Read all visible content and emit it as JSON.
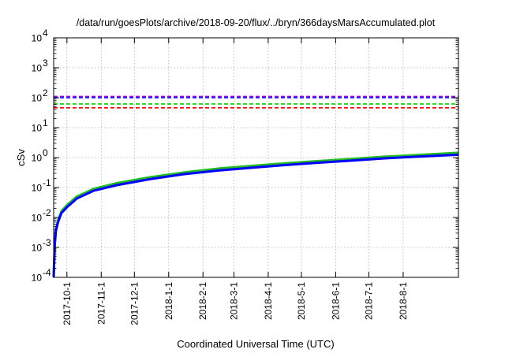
{
  "chart_data": {
    "type": "line",
    "title": "/data/run/goesPlots/archive/2018-09-20/flux/../bryn/366daysMarsAccumulated.plot",
    "xlabel": "Coordinated Universal Time (UTC)",
    "ylabel": "cSv",
    "xlim": [
      "2017-09-19",
      "2018-09-20"
    ],
    "ylim": [
      0.0001,
      10000
    ],
    "yscale": "log",
    "grid": true,
    "x_ticks": [
      "2017-10-1",
      "2017-11-1",
      "2017-12-1",
      "2018-1-1",
      "2018-2-1",
      "2018-3-1",
      "2018-4-1",
      "2018-5-1",
      "2018-6-1",
      "2018-7-1",
      "2018-8-1"
    ],
    "y_ticks": [
      {
        "value": 0.0001,
        "base": "10",
        "exp": "-4"
      },
      {
        "value": 0.001,
        "base": "10",
        "exp": "-3"
      },
      {
        "value": 0.01,
        "base": "10",
        "exp": "-2"
      },
      {
        "value": 0.1,
        "base": "10",
        "exp": "-1"
      },
      {
        "value": 1,
        "base": "10",
        "exp": "0"
      },
      {
        "value": 10,
        "base": "10",
        "exp": "1"
      },
      {
        "value": 100,
        "base": "10",
        "exp": "2"
      },
      {
        "value": 1000,
        "base": "10",
        "exp": "3"
      },
      {
        "value": 10000,
        "base": "10",
        "exp": "4"
      }
    ],
    "reference_lines": [
      {
        "value": 110,
        "color": "#9400d3",
        "style": "dashed"
      },
      {
        "value": 100,
        "color": "#0000ff",
        "style": "dashed"
      },
      {
        "value": 62,
        "color": "#00cc00",
        "style": "dashed"
      },
      {
        "value": 46,
        "color": "#ee0000",
        "style": "dashed"
      }
    ],
    "series": [
      {
        "color": "#22bb22",
        "x": [
          "2017-09-19",
          "2017-09-20",
          "2017-09-21",
          "2017-09-23",
          "2017-09-26",
          "2017-10-01",
          "2017-10-10",
          "2017-10-25",
          "2017-11-15",
          "2017-12-15",
          "2018-01-15",
          "2018-02-15",
          "2018-03-15",
          "2018-04-15",
          "2018-05-15",
          "2018-06-15",
          "2018-07-15",
          "2018-08-15",
          "2018-09-20"
        ],
        "values": [
          0.0001,
          0.0015,
          0.004,
          0.008,
          0.016,
          0.026,
          0.05,
          0.09,
          0.14,
          0.22,
          0.32,
          0.43,
          0.52,
          0.64,
          0.76,
          0.9,
          1.07,
          1.23,
          1.45
        ]
      },
      {
        "color": "#0000ff",
        "x": [
          "2017-09-19",
          "2017-09-20",
          "2017-09-21",
          "2017-09-23",
          "2017-09-26",
          "2017-10-01",
          "2017-10-10",
          "2017-10-25",
          "2017-11-15",
          "2017-12-15",
          "2018-01-15",
          "2018-02-15",
          "2018-03-15",
          "2018-04-15",
          "2018-05-15",
          "2018-06-15",
          "2018-07-15",
          "2018-08-15",
          "2018-09-20"
        ],
        "values": [
          0.0001,
          0.0012,
          0.0035,
          0.007,
          0.014,
          0.022,
          0.043,
          0.078,
          0.12,
          0.19,
          0.28,
          0.37,
          0.45,
          0.56,
          0.67,
          0.79,
          0.94,
          1.08,
          1.25
        ]
      }
    ]
  }
}
